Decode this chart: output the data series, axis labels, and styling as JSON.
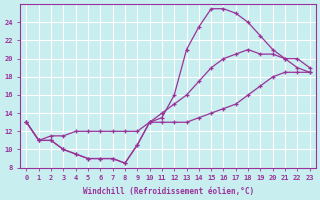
{
  "xlabel": "Windchill (Refroidissement éolien,°C)",
  "ylabel": "",
  "bg_color": "#c8eef0",
  "line_color": "#993399",
  "grid_color": "#ffffff",
  "xlim": [
    -0.5,
    23.5
  ],
  "ylim": [
    8,
    26
  ],
  "yticks": [
    8,
    10,
    12,
    14,
    16,
    18,
    20,
    22,
    24
  ],
  "xticks": [
    0,
    1,
    2,
    3,
    4,
    5,
    6,
    7,
    8,
    9,
    10,
    11,
    12,
    13,
    14,
    15,
    16,
    17,
    18,
    19,
    20,
    21,
    22,
    23
  ],
  "curve1_x": [
    0,
    1,
    2,
    3,
    4,
    5,
    6,
    7,
    8,
    9,
    10,
    11,
    12,
    13,
    14,
    15,
    16,
    17,
    18,
    19,
    20,
    21,
    22,
    23
  ],
  "curve1_y": [
    13.0,
    11.0,
    11.0,
    10.0,
    9.5,
    9.0,
    9.0,
    9.0,
    8.5,
    10.5,
    13.0,
    13.0,
    13.0,
    13.0,
    13.5,
    14.0,
    14.5,
    15.0,
    16.0,
    17.0,
    18.0,
    18.5,
    18.5,
    18.5
  ],
  "curve2_x": [
    0,
    1,
    2,
    3,
    4,
    5,
    6,
    7,
    8,
    9,
    10,
    11,
    12,
    13,
    14,
    15,
    16,
    17,
    18,
    19,
    20,
    21,
    22,
    23
  ],
  "curve2_y": [
    13.0,
    11.0,
    11.5,
    11.5,
    12.0,
    12.0,
    12.0,
    12.0,
    12.0,
    12.0,
    13.0,
    14.0,
    15.0,
    16.0,
    17.5,
    19.0,
    20.0,
    20.5,
    21.0,
    20.5,
    20.5,
    20.0,
    19.0,
    18.5
  ],
  "curve3_x": [
    0,
    1,
    2,
    3,
    4,
    5,
    6,
    7,
    8,
    9,
    10,
    11,
    12,
    13,
    14,
    15,
    16,
    17,
    18,
    19,
    20,
    21,
    22,
    23
  ],
  "curve3_y": [
    13.0,
    11.0,
    11.0,
    10.0,
    9.5,
    9.0,
    9.0,
    9.0,
    8.5,
    10.5,
    13.0,
    13.5,
    16.0,
    21.0,
    23.5,
    25.5,
    25.5,
    25.0,
    24.0,
    22.5,
    21.0,
    20.0,
    20.0,
    19.0
  ]
}
